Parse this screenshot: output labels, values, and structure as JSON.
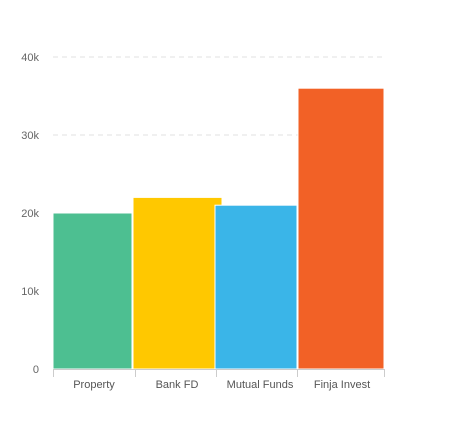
{
  "chart_data": {
    "type": "bar",
    "categories": [
      "Property",
      "Bank FD",
      "Mutual Funds",
      "Finja Invest"
    ],
    "values": [
      20000,
      22000,
      21000,
      36000
    ],
    "colors": [
      "#4dbf91",
      "#ffc800",
      "#3ab5e8",
      "#f26126"
    ],
    "y_ticks": [
      0,
      10000,
      20000,
      30000,
      40000
    ],
    "y_tick_labels": [
      "0",
      "10k",
      "20k",
      "30k",
      "40k"
    ],
    "ylim": [
      0,
      40000
    ],
    "grid": true,
    "grid_color": "#e0e0e0",
    "axis_color": "#cccccc"
  }
}
